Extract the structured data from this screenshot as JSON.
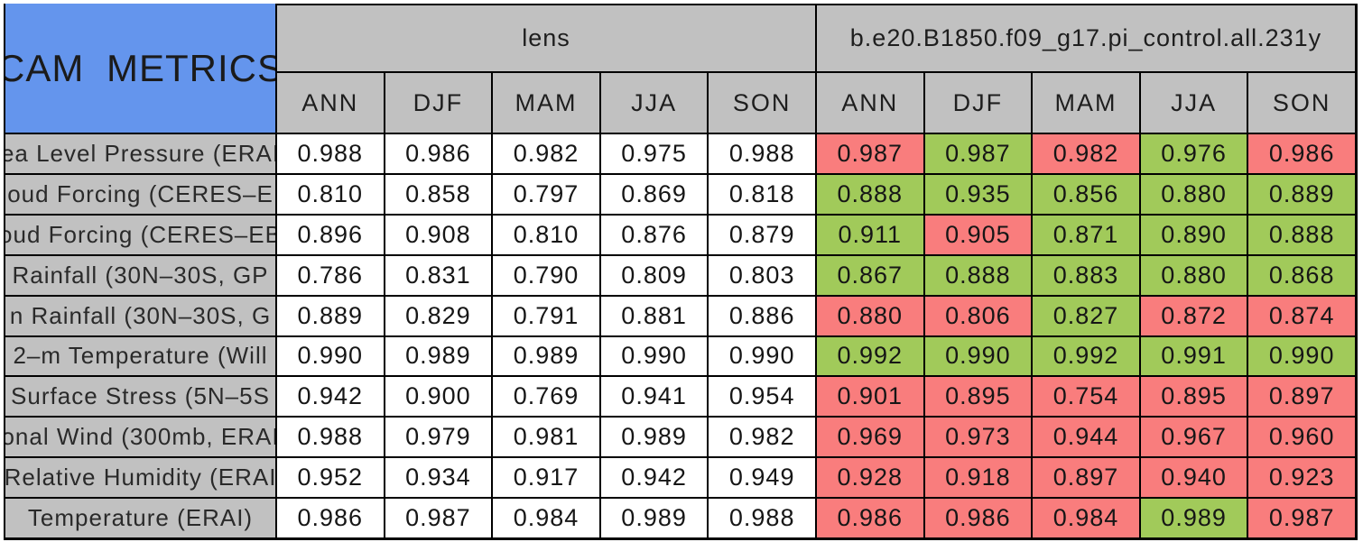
{
  "chart_data": {
    "type": "table",
    "title": "CAM METRICS",
    "col_group_1": "lens",
    "col_group_2": "b.e20.B1850.f09_g17.pi_control.all.231y",
    "seasons": [
      "ANN",
      "DJF",
      "MAM",
      "JJA",
      "SON"
    ],
    "rows": [
      {
        "label": "ea Level Pressure (ERAI",
        "lens": [
          "0.988",
          "0.986",
          "0.982",
          "0.975",
          "0.988"
        ],
        "control": [
          "0.987",
          "0.987",
          "0.982",
          "0.976",
          "0.986"
        ],
        "control_colors": [
          "red",
          "green",
          "red",
          "green",
          "red"
        ]
      },
      {
        "label": "oud Forcing (CERES–E",
        "lens": [
          "0.810",
          "0.858",
          "0.797",
          "0.869",
          "0.818"
        ],
        "control": [
          "0.888",
          "0.935",
          "0.856",
          "0.880",
          "0.889"
        ],
        "control_colors": [
          "green",
          "green",
          "green",
          "green",
          "green"
        ]
      },
      {
        "label": "oud Forcing (CERES–EB",
        "lens": [
          "0.896",
          "0.908",
          "0.810",
          "0.876",
          "0.879"
        ],
        "control": [
          "0.911",
          "0.905",
          "0.871",
          "0.890",
          "0.888"
        ],
        "control_colors": [
          "green",
          "red",
          "green",
          "green",
          "green"
        ]
      },
      {
        "label": "Rainfall (30N–30S, GP",
        "lens": [
          "0.786",
          "0.831",
          "0.790",
          "0.809",
          "0.803"
        ],
        "control": [
          "0.867",
          "0.888",
          "0.883",
          "0.880",
          "0.868"
        ],
        "control_colors": [
          "green",
          "green",
          "green",
          "green",
          "green"
        ]
      },
      {
        "label": "n Rainfall (30N–30S, G",
        "lens": [
          "0.889",
          "0.829",
          "0.791",
          "0.881",
          "0.886"
        ],
        "control": [
          "0.880",
          "0.806",
          "0.827",
          "0.872",
          "0.874"
        ],
        "control_colors": [
          "red",
          "red",
          "green",
          "red",
          "red"
        ]
      },
      {
        "label": "2–m Temperature (Will",
        "lens": [
          "0.990",
          "0.989",
          "0.989",
          "0.990",
          "0.990"
        ],
        "control": [
          "0.992",
          "0.990",
          "0.992",
          "0.991",
          "0.990"
        ],
        "control_colors": [
          "green",
          "green",
          "green",
          "green",
          "green"
        ]
      },
      {
        "label": "Surface Stress (5N–5S",
        "lens": [
          "0.942",
          "0.900",
          "0.769",
          "0.941",
          "0.954"
        ],
        "control": [
          "0.901",
          "0.895",
          "0.754",
          "0.895",
          "0.897"
        ],
        "control_colors": [
          "red",
          "red",
          "red",
          "red",
          "red"
        ]
      },
      {
        "label": "onal Wind (300mb, ERAI",
        "lens": [
          "0.988",
          "0.979",
          "0.981",
          "0.989",
          "0.982"
        ],
        "control": [
          "0.969",
          "0.973",
          "0.944",
          "0.967",
          "0.960"
        ],
        "control_colors": [
          "red",
          "red",
          "red",
          "red",
          "red"
        ]
      },
      {
        "label": "Relative Humidity (ERAI",
        "lens": [
          "0.952",
          "0.934",
          "0.917",
          "0.942",
          "0.949"
        ],
        "control": [
          "0.928",
          "0.918",
          "0.897",
          "0.940",
          "0.923"
        ],
        "control_colors": [
          "red",
          "red",
          "red",
          "red",
          "red"
        ]
      },
      {
        "label": "Temperature (ERAI)",
        "lens": [
          "0.986",
          "0.987",
          "0.984",
          "0.989",
          "0.988"
        ],
        "control": [
          "0.986",
          "0.986",
          "0.984",
          "0.989",
          "0.987"
        ],
        "control_colors": [
          "red",
          "red",
          "red",
          "green",
          "red"
        ]
      }
    ]
  },
  "colors": {
    "red": "#F97D7D",
    "green": "#A1CA5A",
    "header_gray": "#C1C1C1",
    "title_blue": "#6495ED",
    "cell_white": "#FFFFFF",
    "grid_black": "#000000"
  }
}
